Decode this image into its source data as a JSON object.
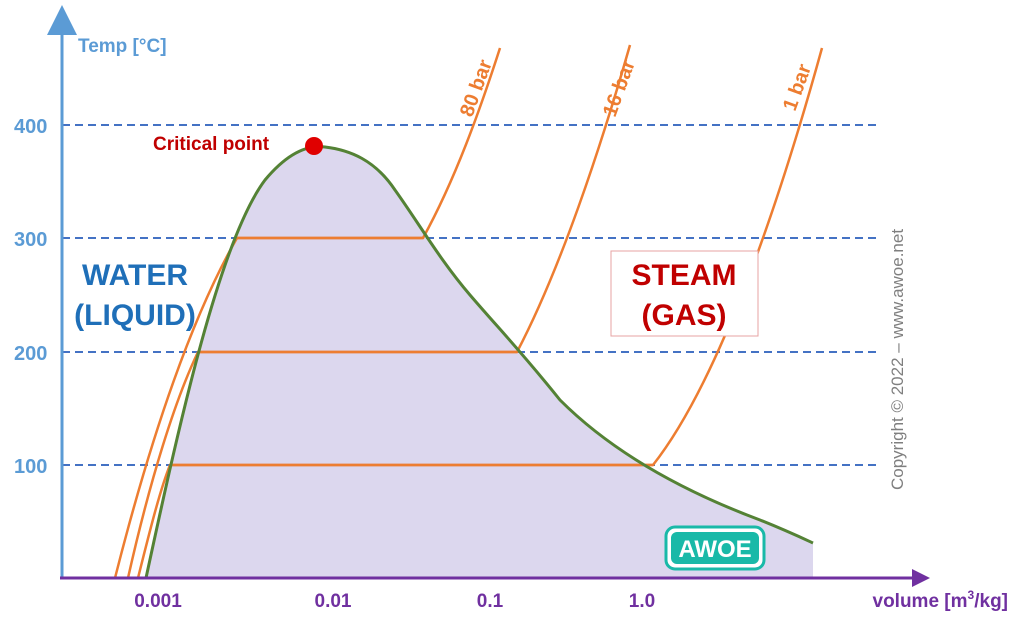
{
  "axes": {
    "y_label": "Temp [°C]",
    "x_label_main": "volume [m",
    "x_label_sup": "3",
    "x_label_tail": "/kg]",
    "y_ticks": [
      "400",
      "300",
      "200",
      "100"
    ],
    "x_ticks": [
      "0.001",
      "0.01",
      "0.1",
      "1.0"
    ]
  },
  "regions": {
    "water_line1": "WATER",
    "water_line2": "(LIQUID)",
    "steam_line1": "STEAM",
    "steam_line2": "(GAS)"
  },
  "critical_point_label": "Critical point",
  "isobars": [
    "80 bar",
    "16 bar",
    "1 bar"
  ],
  "copyright": "Copyright © 2022 – www.awoe.net",
  "logo_text": "AWOE",
  "colors": {
    "axis_y": "#5b9bd5",
    "axis_x": "#7030a0",
    "saturation_curve": "#548235",
    "dome_fill": "#dcd7ee",
    "isobar": "#ed7d31",
    "grid": "#4472c4",
    "water_text": "#1f6fb8",
    "steam_text": "#c00000",
    "critical": "#e00000",
    "logo": "#19b9a8"
  },
  "chart_data": {
    "type": "line",
    "x_scale": "log",
    "xlabel": "volume [m3/kg]",
    "ylabel": "Temp [°C]",
    "x_ticks": [
      0.001,
      0.01,
      0.1,
      1.0
    ],
    "y_ticks": [
      100,
      200,
      300,
      400
    ],
    "critical_point": {
      "x": 0.0031,
      "T": 374
    },
    "series": [
      {
        "name": "80 bar",
        "type": "isobar"
      },
      {
        "name": "16 bar",
        "type": "isobar"
      },
      {
        "name": "1 bar",
        "type": "isobar"
      }
    ]
  }
}
